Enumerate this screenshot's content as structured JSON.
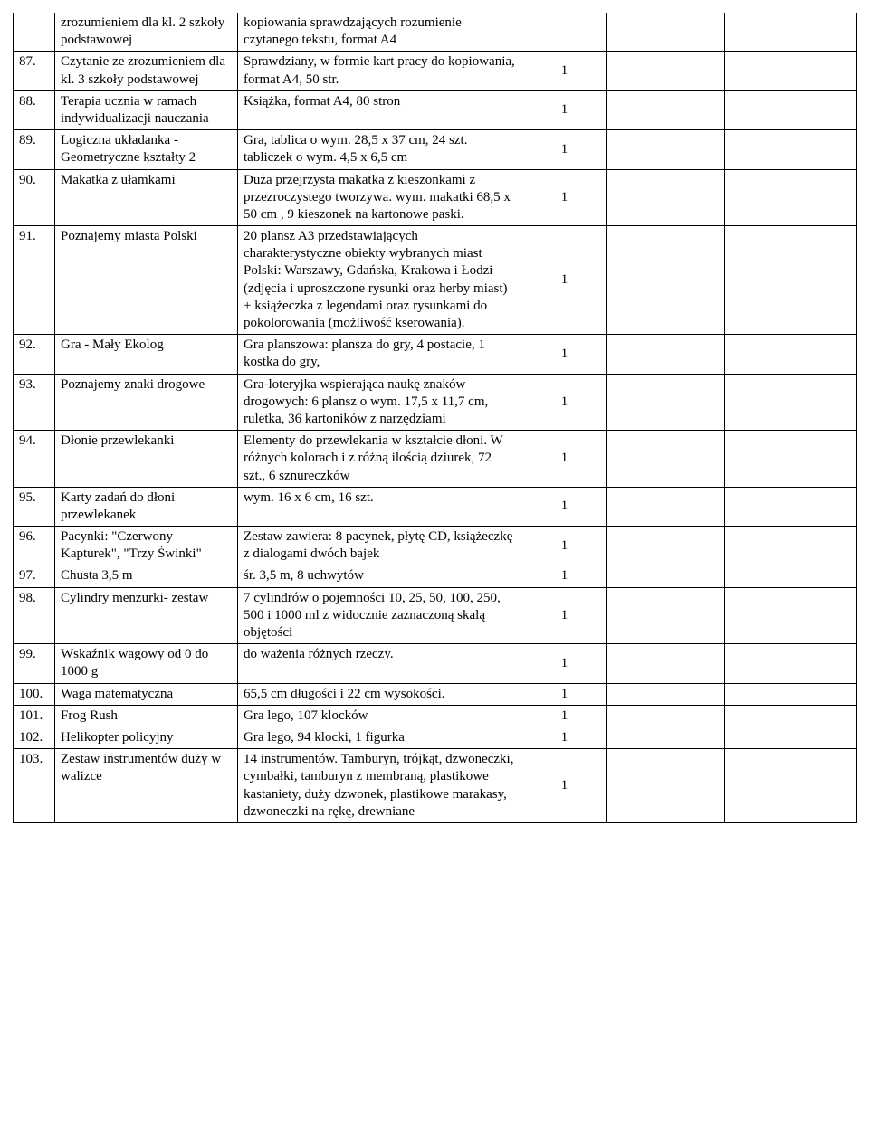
{
  "rows": [
    {
      "n": "",
      "name": "zrozumieniem dla kl. 2 szkoły podstawowej",
      "desc": "kopiowania sprawdzających rozumienie czytanego tekstu, format A4",
      "qty": ""
    },
    {
      "n": "87.",
      "name": "Czytanie ze zrozumieniem dla kl. 3 szkoły podstawowej",
      "desc": "Sprawdziany, w formie kart pracy do kopiowania,  format A4, 50 str.",
      "qty": "1"
    },
    {
      "n": "88.",
      "name": "Terapia ucznia w ramach indywidualizacji nauczania",
      "desc": "Książka, format A4,  80 stron",
      "qty": "1"
    },
    {
      "n": "89.",
      "name": "Logiczna układanka - Geometryczne kształty 2",
      "desc": "Gra,  tablica o wym. 28,5 x 37 cm, 24 szt. tabliczek o wym. 4,5 x 6,5 cm",
      "qty": "1"
    },
    {
      "n": "90.",
      "name": "Makatka z ułamkami",
      "desc": "Duża przejrzysta makatka z kieszonkami z przezroczystego tworzywa.  wym. makatki 68,5 x 50 cm , 9 kieszonek na kartonowe paski.",
      "qty": "1"
    },
    {
      "n": "91.",
      "name": "Poznajemy miasta Polski",
      "desc": "20 plansz A3 przedstawiających charakterystyczne obiekty wybranych miast Polski: Warszawy, Gdańska, Krakowa i Łodzi (zdjęcia i uproszczone rysunki oraz herby miast) + książeczka z legendami oraz rysunkami do pokolorowania (możliwość kserowania).",
      "qty": "1"
    },
    {
      "n": "92.",
      "name": "Gra - Mały Ekolog",
      "desc": "Gra planszowa: plansza do gry, 4 postacie, 1 kostka do gry,",
      "qty": "1"
    },
    {
      "n": "93.",
      "name": "Poznajemy znaki drogowe",
      "desc": "Gra-loteryjka wspierająca naukę znaków drogowych: 6 plansz o wym. 17,5 x 11,7 cm, ruletka,  36 kartoników z narzędziami",
      "qty": "1"
    },
    {
      "n": "94.",
      "name": "Dłonie przewlekanki",
      "desc": "Elementy do przewlekania w kształcie dłoni. W różnych kolorach i z różną ilością dziurek,  72 szt., 6 sznureczków",
      "qty": "1"
    },
    {
      "n": "95.",
      "name": "Karty zadań do dłoni przewlekanek",
      "desc": " wym. 16 x 6 cm, 16 szt.",
      "qty": "1"
    },
    {
      "n": "96.",
      "name": "Pacynki: \"Czerwony Kapturek\", \"Trzy Świnki\"",
      "desc": "Zestaw zawiera:  8 pacynek, płytę CD, książeczkę z dialogami dwóch bajek",
      "qty": "1"
    },
    {
      "n": "97.",
      "name": "Chusta 3,5 m",
      "desc": "śr. 3,5 m, 8 uchwytów",
      "qty": "1"
    },
    {
      "n": "98.",
      "name": "Cylindry menzurki- zestaw",
      "desc": "7 cylindrów o pojemności 10, 25, 50, 100, 250, 500 i 1000 ml z widocznie zaznaczoną skalą objętości",
      "qty": "1"
    },
    {
      "n": "99.",
      "name": "Wskaźnik wagowy od 0 do 1000 g",
      "desc": "do ważenia różnych rzeczy.",
      "qty": "1"
    },
    {
      "n": "100.",
      "name": "Waga matematyczna",
      "desc": "65,5 cm długości i 22 cm wysokości.",
      "qty": "1"
    },
    {
      "n": "101.",
      "name": "Frog Rush",
      "desc": " Gra lego, 107 klocków",
      "qty": "1"
    },
    {
      "n": "102.",
      "name": "Helikopter policyjny",
      "desc": " Gra lego, 94 klocki, 1 figurka",
      "qty": "1"
    },
    {
      "n": "103.",
      "name": "Zestaw instrumentów duży w walizce",
      "desc": "14 instrumentów. Tamburyn, trójkąt, dzwoneczki, cymbałki, tamburyn z membraną, plastikowe kastaniety, duży dzwonek, plastikowe marakasy, dzwoneczki na rękę, drewniane",
      "qty": "1"
    }
  ]
}
